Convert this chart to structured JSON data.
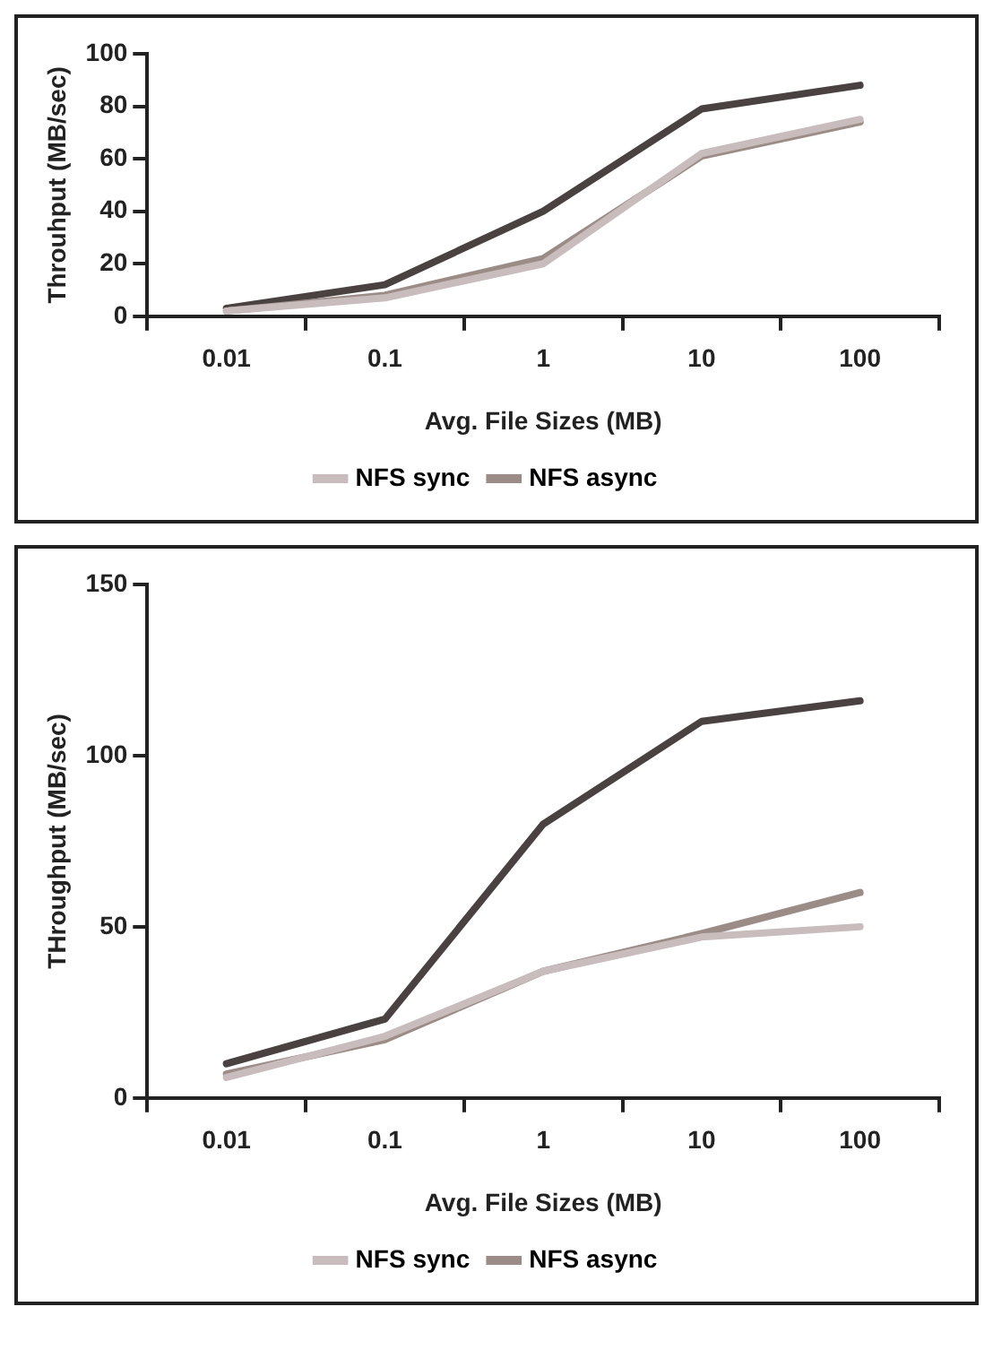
{
  "chart_data": [
    {
      "type": "line",
      "xlabel": "Avg. File Sizes (MB)",
      "ylabel": "Throuhput (MB/sec)",
      "categories": [
        "0.01",
        "0.1",
        "1",
        "10",
        "100"
      ],
      "ylim": [
        0,
        100
      ],
      "yticks": [
        0,
        20,
        40,
        60,
        80,
        100
      ],
      "grid": false,
      "legend": "bottom",
      "marker": "none",
      "line_style": "solid",
      "series": [
        {
          "name": "NFS sync",
          "color": "#c8bcbc",
          "values": [
            2,
            7,
            20,
            62,
            75
          ]
        },
        {
          "name": "NFS async",
          "color": "#9c8c88",
          "values": [
            2,
            8,
            22,
            61,
            74
          ]
        },
        {
          "color": "#4a4240",
          "values": [
            3,
            12,
            40,
            79,
            88
          ]
        }
      ]
    },
    {
      "type": "line",
      "xlabel": "Avg. File Sizes (MB)",
      "ylabel": "THroughput (MB/sec)",
      "categories": [
        "0.01",
        "0.1",
        "1",
        "10",
        "100"
      ],
      "ylim": [
        0,
        150
      ],
      "yticks": [
        0,
        50,
        100,
        150
      ],
      "grid": false,
      "legend": "bottom",
      "marker": "none",
      "line_style": "solid",
      "series": [
        {
          "name": "NFS sync",
          "color": "#c8bcbc",
          "values": [
            6,
            18,
            37,
            47,
            50
          ]
        },
        {
          "name": "NFS async",
          "color": "#9c8c88",
          "values": [
            7,
            17,
            37,
            48,
            60
          ]
        },
        {
          "color": "#4a4240",
          "values": [
            10,
            23,
            80,
            110,
            116
          ]
        }
      ]
    }
  ]
}
